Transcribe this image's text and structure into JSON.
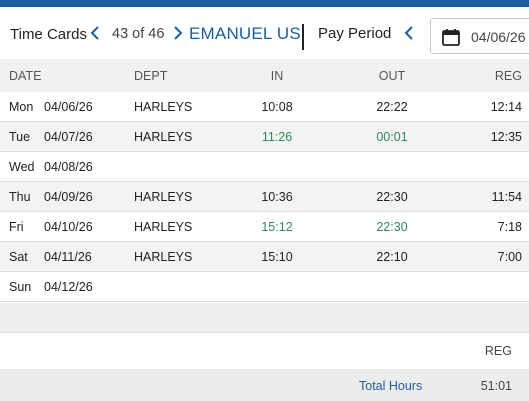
{
  "header": {
    "title": "Time Cards",
    "counter": "43 of 46",
    "employee_name": "EMANUEL US",
    "pay_period_label": "Pay Period",
    "date_value": "04/06/26"
  },
  "columns": {
    "date": "DATE",
    "dept": "DEPT",
    "in": "IN",
    "out": "OUT",
    "reg": "REG"
  },
  "rows": [
    {
      "day": "Mon",
      "date": "04/06/26",
      "dept": "HARLEYS",
      "in": "10:08",
      "out": "22:22",
      "reg": "12:14"
    },
    {
      "day": "Tue",
      "date": "04/07/26",
      "dept": "HARLEYS",
      "in": "11:26",
      "out": "00:01",
      "reg": "12:35"
    },
    {
      "day": "Wed",
      "date": "04/08/26",
      "dept": "",
      "in": "",
      "out": "",
      "reg": ""
    },
    {
      "day": "Thu",
      "date": "04/09/26",
      "dept": "HARLEYS",
      "in": "10:36",
      "out": "22:30",
      "reg": "11:54"
    },
    {
      "day": "Fri",
      "date": "04/10/26",
      "dept": "HARLEYS",
      "in": "15:12",
      "out": "22:30",
      "reg": "7:18"
    },
    {
      "day": "Sat",
      "date": "04/11/26",
      "dept": "HARLEYS",
      "in": "15:10",
      "out": "22:10",
      "reg": "7:00"
    },
    {
      "day": "Sun",
      "date": "04/12/26",
      "dept": "",
      "in": "",
      "out": "",
      "reg": ""
    }
  ],
  "summary": {
    "reg_header": "REG",
    "total_label": "Total Hours",
    "total_reg": "51:01"
  },
  "colors": {
    "brand_blue": "#1b5f9e",
    "edited_time_green": "#2e8b57"
  },
  "icons": {
    "prev": "chevron-left-icon",
    "next": "chevron-right-icon",
    "calendar": "calendar-icon"
  }
}
